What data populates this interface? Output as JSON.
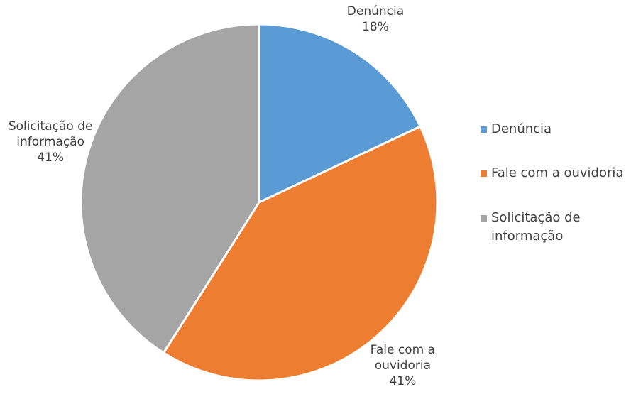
{
  "chart_data": {
    "type": "pie",
    "categories": [
      "Denúncia",
      "Fale com a ouvidoria",
      "Solicitação de informação"
    ],
    "values": [
      18,
      41,
      41
    ],
    "value_labels": [
      "18%",
      "41%",
      "41%"
    ],
    "colors": [
      "#5b9bd5",
      "#ed7d31",
      "#a5a5a5"
    ],
    "legend": "right"
  }
}
